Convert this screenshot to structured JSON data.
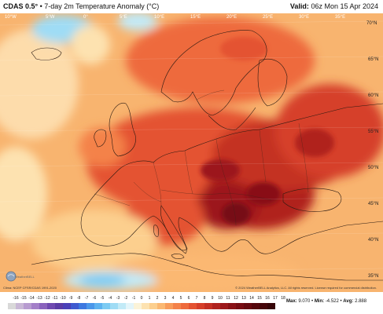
{
  "title": {
    "model": "CDAS 0.5°",
    "description": "• 7-day 2m Temperature Anomaly (°C)",
    "valid_label": "Valid:",
    "valid_time": "06z Mon 15 Apr 2024"
  },
  "lon_labels": [
    "10°W",
    "5°W",
    "0°",
    "5°E",
    "10°E",
    "15°E",
    "20°E",
    "25°E",
    "30°E",
    "35°E"
  ],
  "lat_labels": [
    "70°N",
    "65°N",
    "60°N",
    "55°N",
    "50°N",
    "45°N",
    "40°N",
    "35°N"
  ],
  "credit": "Clima: NCEP CFSR/CDAS 1991-2020",
  "copyright": "© 2024 WeatherBELL Analytics, LLC. All rights reserved. License required for commercial distribution.",
  "logo_text": "WeatherBELL",
  "colorbar": {
    "ticks": [
      "-16",
      "-15",
      "-14",
      "-13",
      "-12",
      "-11",
      "-10",
      "-9",
      "-8",
      "-7",
      "-6",
      "-5",
      "-4",
      "-3",
      "-2",
      "-1",
      "0",
      "1",
      "2",
      "3",
      "4",
      "5",
      "6",
      "7",
      "8",
      "9",
      "10",
      "11",
      "12",
      "13",
      "14",
      "15",
      "16",
      "17",
      "18"
    ],
    "colors": [
      "#d9d9d9",
      "#c9b8d6",
      "#b79bd0",
      "#a37fc8",
      "#8a63bd",
      "#6f4ab0",
      "#5a3ca6",
      "#4a40b8",
      "#3f5ad0",
      "#3c78e0",
      "#4a97ea",
      "#5eb3f0",
      "#7ccbf3",
      "#9fdcf5",
      "#c2eaf7",
      "#e3f5fa",
      "#fbf3d8",
      "#fde2b0",
      "#fccf8e",
      "#fbb872",
      "#f89c5a",
      "#f4824a",
      "#ee6a3c",
      "#e45332",
      "#d63f2a",
      "#c43024",
      "#b0231f",
      "#9c181b",
      "#891116",
      "#770c12",
      "#66090f",
      "#55070c",
      "#45060a",
      "#360508"
    ],
    "accent_max": "#360508",
    "accent_min": "#d9d9d9"
  },
  "stats": {
    "max_label": "Max:",
    "max_value": "9.070",
    "min_label": "Min:",
    "min_value": "-4.522",
    "avg_label": "Avg:",
    "avg_value": "2.888"
  }
}
